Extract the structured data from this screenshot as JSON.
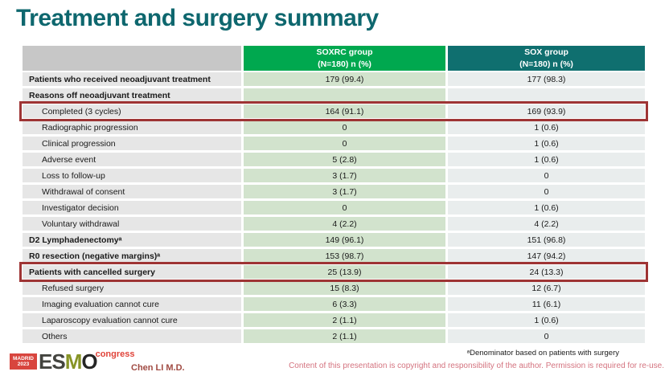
{
  "slide": {
    "title": "Treatment and surgery summary",
    "presenter": "Chen LI M.D.",
    "footnote": "ᵃDenominator based on patients with surgery",
    "copyright": "Content of this presentation is copyright and responsibility of the author. Permission is required for re-use.",
    "logo": {
      "venue": "MADRID",
      "year": "2023",
      "letters": [
        "E",
        "S",
        "M",
        "O"
      ],
      "event": "congress"
    }
  },
  "colors": {
    "title": "#0e676e",
    "soxrc_header_bg": "#00a84f",
    "sox_header_bg": "#0f6f6f",
    "label_header_bg": "#c7c7c7",
    "label_cell_bg": "#e6e6e6",
    "soxrc_cell_bg": "#d2e3cd",
    "sox_cell_bg": "#e9eded",
    "highlight_border": "#9e3434",
    "copyright_text": "#d4737f"
  },
  "table": {
    "columns": [
      {
        "line1": "",
        "line2": ""
      },
      {
        "line1": "SOXRC group",
        "line2": "(N=180)  n (%)"
      },
      {
        "line1": "SOX group",
        "line2": "(N=180)  n (%)"
      }
    ],
    "rows": [
      {
        "label": "Patients who received neoadjuvant treatment",
        "soxrc": "179 (99.4)",
        "sox": "177 (98.3)",
        "bold": true,
        "indent": false,
        "highlight": false
      },
      {
        "label": "Reasons off neoadjuvant treatment",
        "soxrc": "",
        "sox": "",
        "bold": true,
        "indent": false,
        "highlight": false
      },
      {
        "label": "Completed (3 cycles)",
        "soxrc": "164 (91.1)",
        "sox": "169 (93.9)",
        "bold": false,
        "indent": true,
        "highlight": true
      },
      {
        "label": "Radiographic progression",
        "soxrc": "0",
        "sox": "1 (0.6)",
        "bold": false,
        "indent": true,
        "highlight": false
      },
      {
        "label": "Clinical progression",
        "soxrc": "0",
        "sox": "1 (0.6)",
        "bold": false,
        "indent": true,
        "highlight": false
      },
      {
        "label": "Adverse event",
        "soxrc": "5 (2.8)",
        "sox": "1 (0.6)",
        "bold": false,
        "indent": true,
        "highlight": false
      },
      {
        "label": "Loss to follow-up",
        "soxrc": "3 (1.7)",
        "sox": "0",
        "bold": false,
        "indent": true,
        "highlight": false
      },
      {
        "label": "Withdrawal of consent",
        "soxrc": "3 (1.7)",
        "sox": "0",
        "bold": false,
        "indent": true,
        "highlight": false
      },
      {
        "label": "Investigator decision",
        "soxrc": "0",
        "sox": "1 (0.6)",
        "bold": false,
        "indent": true,
        "highlight": false
      },
      {
        "label": "Voluntary withdrawal",
        "soxrc": "4 (2.2)",
        "sox": "4 (2.2)",
        "bold": false,
        "indent": true,
        "highlight": false
      },
      {
        "label": "D2 Lymphadenectomyᵃ",
        "soxrc": "149 (96.1)",
        "sox": "151 (96.8)",
        "bold": true,
        "indent": false,
        "highlight": false
      },
      {
        "label": "R0 resection (negative margins)ᵃ",
        "soxrc": "153 (98.7)",
        "sox": "147 (94.2)",
        "bold": true,
        "indent": false,
        "highlight": false
      },
      {
        "label": "Patients with cancelled surgery",
        "soxrc": "25 (13.9)",
        "sox": "24 (13.3)",
        "bold": true,
        "indent": false,
        "highlight": true
      },
      {
        "label": "Refused surgery",
        "soxrc": "15 (8.3)",
        "sox": "12 (6.7)",
        "bold": false,
        "indent": true,
        "highlight": false
      },
      {
        "label": "Imaging evaluation cannot cure",
        "soxrc": "6 (3.3)",
        "sox": "11 (6.1)",
        "bold": false,
        "indent": true,
        "highlight": false
      },
      {
        "label": "Laparoscopy evaluation cannot cure",
        "soxrc": "2 (1.1)",
        "sox": "1 (0.6)",
        "bold": false,
        "indent": true,
        "highlight": false
      },
      {
        "label": "Others",
        "soxrc": "2 (1.1)",
        "sox": "0",
        "bold": false,
        "indent": true,
        "highlight": false
      }
    ]
  }
}
